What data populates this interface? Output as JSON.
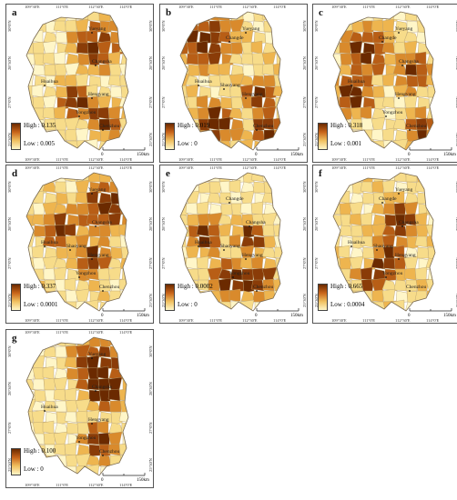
{
  "ticks": {
    "lon": [
      "109°30'E",
      "111°0'E",
      "112°30'E",
      "114°0'E"
    ],
    "lat": [
      "30°0'N",
      "28°30'N",
      "27°0'N",
      "25°30'N"
    ]
  },
  "scalebar": {
    "zero": "0",
    "end": "150km"
  },
  "colors": {
    "high": "#6b2a00",
    "mid": "#c8641a",
    "low": "#fff6c8"
  },
  "panels": [
    {
      "label": "a",
      "high": "High : 0.135",
      "low": "Low : 0.005",
      "cities": [
        "Yueyang",
        "Changsha",
        "Huaihua",
        "Hengyang",
        "Yongzhou",
        "Chenzhou"
      ]
    },
    {
      "label": "b",
      "high": "High : 0.019",
      "low": "Low : 0",
      "cities": [
        "Changde",
        "Yueyang",
        "Huaihua",
        "Shaoyang",
        "Hengyang",
        "Chenzhou"
      ]
    },
    {
      "label": "c",
      "high": "High : 0.318",
      "low": "Low : 0.001",
      "cities": [
        "Changde",
        "Yueyang",
        "Changsha",
        "Huaihua",
        "Hengyang",
        "Yongzhou",
        "Chenzhou"
      ]
    },
    {
      "label": "d",
      "high": "High : 0.337",
      "low": "Low : 0.0001",
      "cities": [
        "Yueyang",
        "Changsha",
        "Huaihua",
        "Shaoyang",
        "Hengyang",
        "Yongzhou",
        "Chenzhou"
      ]
    },
    {
      "label": "e",
      "high": "High : 0.0002",
      "low": "Low : 0",
      "cities": [
        "Changde",
        "Changsha",
        "Huaihua",
        "Shaoyang",
        "Hengyang",
        "Yongzhou",
        "Chenzhou"
      ]
    },
    {
      "label": "f",
      "high": "High : 0.665",
      "low": "Low : 0.0004",
      "cities": [
        "Changde",
        "Yueyang",
        "Changsha",
        "Huaihua",
        "Shaoyang",
        "Hengyang",
        "Yongzhou",
        "Chenzhou"
      ]
    },
    {
      "label": "g",
      "high": "High : 0.100",
      "low": "Low : 0",
      "cities": [
        "Yueyang",
        "Changsha",
        "Huaihua",
        "Hengyang",
        "Yongzhou",
        "Chenzhou"
      ]
    }
  ]
}
